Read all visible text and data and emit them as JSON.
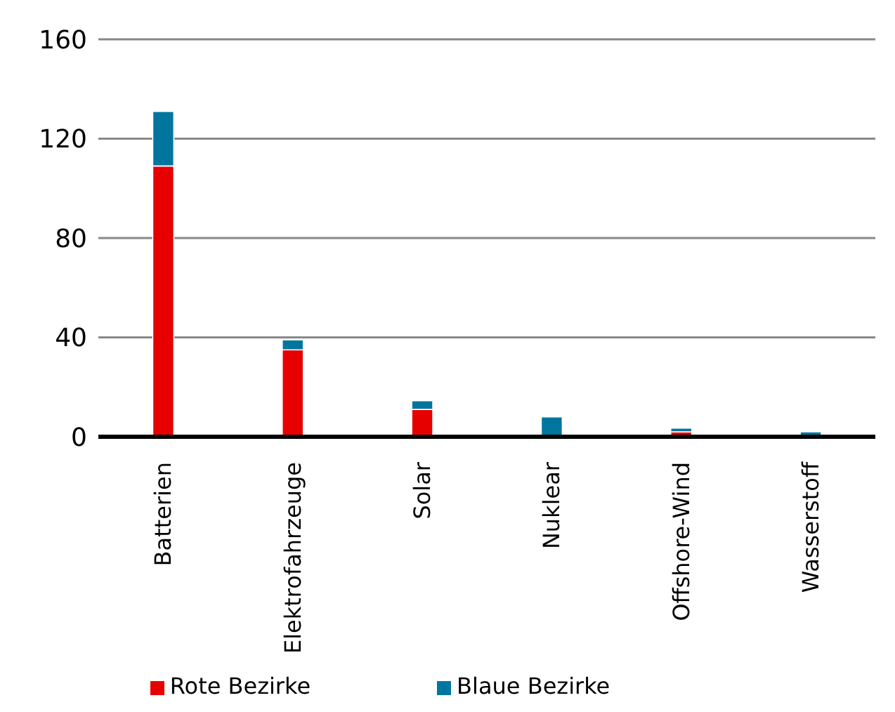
{
  "chart_data": {
    "type": "bar",
    "stacked": true,
    "categories": [
      "Batterien",
      "Elektrofahrzeuge",
      "Solar",
      "Nuklear",
      "Offshore-Wind",
      "Wasserstoff"
    ],
    "series": [
      {
        "name": "Rote Bezirke",
        "color": "#e60000",
        "values": [
          109,
          35,
          11,
          0,
          2,
          0
        ]
      },
      {
        "name": "Blaue Bezirke",
        "color": "#00769e",
        "values": [
          22,
          4,
          3.5,
          8,
          1.5,
          2
        ]
      }
    ],
    "ylim": [
      0,
      160
    ],
    "yticks": [
      0,
      40,
      80,
      120,
      160
    ],
    "grid": "y",
    "legend": "bottom"
  }
}
